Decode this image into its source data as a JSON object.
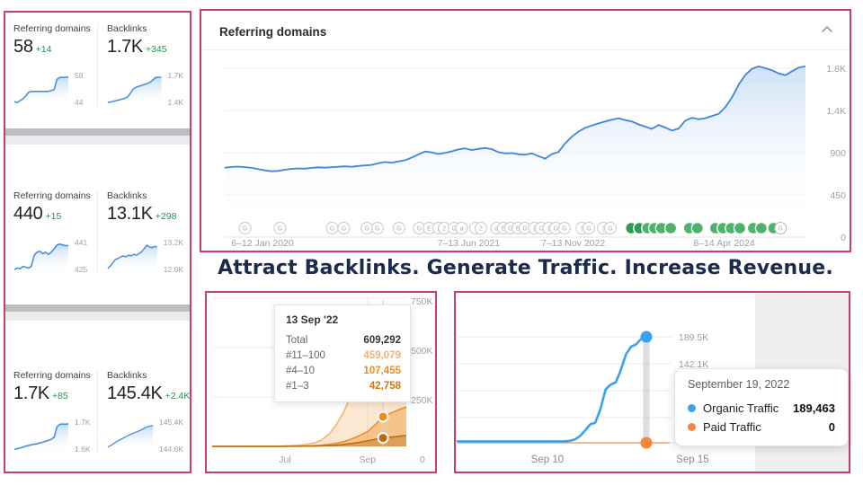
{
  "colors": {
    "border": "#c7406b",
    "blue_line": "#3e86dd",
    "green_delta": "#1e9850",
    "orange_mid": "#ef8b1f",
    "orange_dark": "#b96a10",
    "orange_light": "#f2b26d",
    "tooltip_blue": "#38a1f2",
    "tooltip_orange": "#f5863b"
  },
  "headline": "Attract Backlinks. Generate Traffic. Increase Revenue.",
  "left_panel": {
    "cards": [
      {
        "metrics": [
          {
            "label": "Referring domains",
            "value": "58",
            "delta": "+14",
            "max_label": "58",
            "min_label": "44",
            "series": [
              44.5,
              44,
              45,
              46,
              47.5,
              49.5,
              50,
              50,
              50,
              50,
              50,
              50,
              50,
              50.5,
              51,
              56.5,
              57.5,
              57.5,
              57.6,
              57.7
            ]
          },
          {
            "label": "Backlinks",
            "value": "1.7K",
            "delta": "+345",
            "max_label": "1.7K",
            "min_label": "1.4K",
            "series": [
              1400,
              1405,
              1412,
              1420,
              1428,
              1435,
              1445,
              1460,
              1500,
              1545,
              1565,
              1575,
              1585,
              1595,
              1605,
              1620,
              1645,
              1670,
              1672,
              1674
            ]
          }
        ]
      },
      {
        "metrics": [
          {
            "label": "Referring domains",
            "value": "440",
            "delta": "+15",
            "max_label": "441",
            "min_label": "425",
            "series": [
              425,
              426,
              425.5,
              427,
              426.5,
              426,
              427,
              434,
              436,
              436.5,
              435,
              436,
              434.5,
              436,
              438,
              440.5,
              441,
              440.5,
              440,
              440.2
            ]
          },
          {
            "label": "Backlinks",
            "value": "13.1K",
            "delta": "+298",
            "max_label": "13.2K",
            "min_label": "12.9K",
            "series": [
              12890,
              12920,
              12960,
              13000,
              13010,
              13030,
              13040,
              13030,
              13050,
              13040,
              13060,
              13050,
              13070,
              13090,
              13130,
              13170,
              13150,
              13140,
              13155,
              13150
            ]
          }
        ]
      },
      {
        "metrics": [
          {
            "label": "Referring domains",
            "value": "1.7K",
            "delta": "+85",
            "max_label": "1.7K",
            "min_label": "1.6K",
            "series": [
              1600,
              1602,
              1605,
              1608,
              1612,
              1615,
              1618,
              1620,
              1622,
              1625,
              1628,
              1632,
              1636,
              1640,
              1648,
              1690,
              1700,
              1701,
              1700,
              1702
            ]
          },
          {
            "label": "Backlinks",
            "value": "145.4K",
            "delta": "+2.4K",
            "max_label": "145.4K",
            "min_label": "144.6K",
            "series": [
              144550,
              144600,
              144650,
              144720,
              144780,
              144830,
              144880,
              144930,
              144980,
              145030,
              145070,
              145110,
              145150,
              145190,
              145230,
              145280,
              145330,
              145370,
              145390,
              145400
            ]
          }
        ]
      }
    ]
  },
  "referring_chart": {
    "title": "Referring domains",
    "y_ticks": [
      "1.8K",
      "1.4K",
      "900",
      "450",
      "0"
    ],
    "y_max": 1800,
    "x_ticks": [
      {
        "label": "6–12 Jan 2020",
        "f": 0.065
      },
      {
        "label": "7–13 Jun 2021",
        "f": 0.42
      },
      {
        "label": "7–13 Nov 2022",
        "f": 0.6
      },
      {
        "label": "8–14 Apr 2024",
        "f": 0.86
      }
    ],
    "series": [
      740,
      748,
      752,
      746,
      738,
      726,
      712,
      702,
      706,
      718,
      728,
      732,
      730,
      738,
      744,
      740,
      746,
      750,
      754,
      750,
      758,
      764,
      770,
      788,
      800,
      794,
      806,
      820,
      848,
      880,
      912,
      904,
      886,
      898,
      914,
      934,
      946,
      928,
      940,
      950,
      938,
      906,
      892,
      896,
      884,
      878,
      892,
      864,
      836,
      885,
      908,
      1000,
      1070,
      1125,
      1165,
      1190,
      1212,
      1232,
      1252,
      1268,
      1248,
      1232,
      1202,
      1178,
      1154,
      1196,
      1168,
      1136,
      1158,
      1242,
      1272,
      1256,
      1268,
      1292,
      1315,
      1385,
      1490,
      1625,
      1730,
      1795,
      1820,
      1800,
      1778,
      1744,
      1726,
      1768,
      1808,
      1822
    ],
    "icons": [
      {
        "f": 0.035,
        "s": "o",
        "t": "G"
      },
      {
        "f": 0.095,
        "s": "o",
        "t": "G"
      },
      {
        "f": 0.185,
        "s": "o",
        "t": "G"
      },
      {
        "f": 0.205,
        "s": "o",
        "t": "G"
      },
      {
        "f": 0.245,
        "s": "o",
        "t": "G"
      },
      {
        "f": 0.263,
        "s": "o",
        "t": "G"
      },
      {
        "f": 0.3,
        "s": "o",
        "t": "G"
      },
      {
        "f": 0.335,
        "s": "o",
        "t": "G"
      },
      {
        "f": 0.352,
        "s": "o",
        "t": "E"
      },
      {
        "f": 0.368,
        "s": "o",
        "t": "("
      },
      {
        "f": 0.378,
        "s": "o",
        "t": "2"
      },
      {
        "f": 0.395,
        "s": "o",
        "t": "G"
      },
      {
        "f": 0.408,
        "s": "o",
        "t": "a"
      },
      {
        "f": 0.432,
        "s": "o",
        "t": "("
      },
      {
        "f": 0.441,
        "s": "o",
        "t": "2"
      },
      {
        "f": 0.468,
        "s": "o",
        "t": "a"
      },
      {
        "f": 0.48,
        "s": "o",
        "t": "E"
      },
      {
        "f": 0.492,
        "s": "o",
        "t": "G"
      },
      {
        "f": 0.505,
        "s": "o",
        "t": "E"
      },
      {
        "f": 0.517,
        "s": "o",
        "t": "G"
      },
      {
        "f": 0.533,
        "s": "o",
        "t": "("
      },
      {
        "f": 0.545,
        "s": "o",
        "t": "G"
      },
      {
        "f": 0.558,
        "s": "o",
        "t": "("
      },
      {
        "f": 0.57,
        "s": "o",
        "t": "G"
      },
      {
        "f": 0.585,
        "s": "o",
        "t": "G"
      },
      {
        "f": 0.615,
        "s": "o",
        "t": "("
      },
      {
        "f": 0.627,
        "s": "o",
        "t": "G"
      },
      {
        "f": 0.652,
        "s": "o",
        "t": "("
      },
      {
        "f": 0.664,
        "s": "o",
        "t": "G"
      },
      {
        "f": 0.7,
        "s": "gd",
        "t": ""
      },
      {
        "f": 0.714,
        "s": "gd",
        "t": ""
      },
      {
        "f": 0.728,
        "s": "g",
        "t": ""
      },
      {
        "f": 0.74,
        "s": "g",
        "t": ""
      },
      {
        "f": 0.752,
        "s": "g",
        "t": ""
      },
      {
        "f": 0.768,
        "s": "g",
        "t": ""
      },
      {
        "f": 0.8,
        "s": "g",
        "t": ""
      },
      {
        "f": 0.814,
        "s": "g",
        "t": ""
      },
      {
        "f": 0.845,
        "s": "g",
        "t": ""
      },
      {
        "f": 0.858,
        "s": "g",
        "t": ""
      },
      {
        "f": 0.872,
        "s": "g",
        "t": ""
      },
      {
        "f": 0.887,
        "s": "g",
        "t": ""
      },
      {
        "f": 0.91,
        "s": "g",
        "t": ""
      },
      {
        "f": 0.924,
        "s": "g",
        "t": ""
      },
      {
        "f": 0.945,
        "s": "g",
        "t": ""
      },
      {
        "f": 0.957,
        "s": "w",
        "t": "G"
      }
    ]
  },
  "keywords_chart": {
    "y_ticks": [
      "750K",
      "500K",
      "250K"
    ],
    "zero_label": "0",
    "x_ticks": [
      {
        "label": "Jul",
        "f": 0.375
      },
      {
        "label": "Sep",
        "f": 0.8
      }
    ],
    "marker_index": 22,
    "marker_values": [
      609292,
      150213,
      42758
    ],
    "series_total": [
      500,
      500,
      600,
      700,
      800,
      900,
      1000,
      1200,
      1500,
      2000,
      3000,
      5000,
      9000,
      16000,
      30000,
      60000,
      110000,
      180000,
      270000,
      380000,
      480000,
      560000,
      609292,
      640000,
      668000,
      700000
    ],
    "series_mid": [
      0,
      0,
      0,
      0,
      0,
      0,
      0,
      100,
      200,
      400,
      700,
      1200,
      2000,
      3500,
      6000,
      10000,
      16000,
      25000,
      38000,
      55000,
      75000,
      110000,
      150213,
      168000,
      185000,
      200000
    ],
    "series_low": [
      0,
      0,
      0,
      0,
      0,
      0,
      0,
      0,
      100,
      200,
      300,
      500,
      900,
      1500,
      2500,
      4000,
      6500,
      10000,
      15000,
      21000,
      28000,
      36000,
      42758,
      47000,
      51000,
      55000
    ],
    "tooltip": {
      "date": "13 Sep '22",
      "rows": [
        {
          "label": "Total",
          "value": "609,292"
        },
        {
          "label": "#11–100",
          "value": "459,079"
        },
        {
          "label": "#4–10",
          "value": "107,455"
        },
        {
          "label": "#1–3",
          "value": "42,758"
        }
      ]
    }
  },
  "traffic_chart": {
    "y_labels": [
      "189.5K",
      "142.1K"
    ],
    "x_ticks": [
      {
        "label": "Sep 10",
        "f": 0.3
      },
      {
        "label": "Sep 15",
        "f": 0.785
      }
    ],
    "organic_max": 189463,
    "organic_series": [
      2500,
      2500,
      2500,
      2500,
      2500,
      2500,
      2500,
      2500,
      2500,
      2500,
      2500,
      2500,
      2500,
      2500,
      2500,
      2500,
      2500,
      2500,
      2500,
      2500,
      2500,
      2600,
      3500,
      6000,
      12000,
      22000,
      33000,
      36000,
      60000,
      95000,
      104000,
      108000,
      130000,
      158000,
      172000,
      176000,
      186000,
      189463
    ],
    "paid_value": 0,
    "tooltip": {
      "date": "September 19, 2022",
      "rows": [
        {
          "label": "Organic Traffic",
          "value": "189,463"
        },
        {
          "label": "Paid Traffic",
          "value": "0"
        }
      ]
    }
  }
}
